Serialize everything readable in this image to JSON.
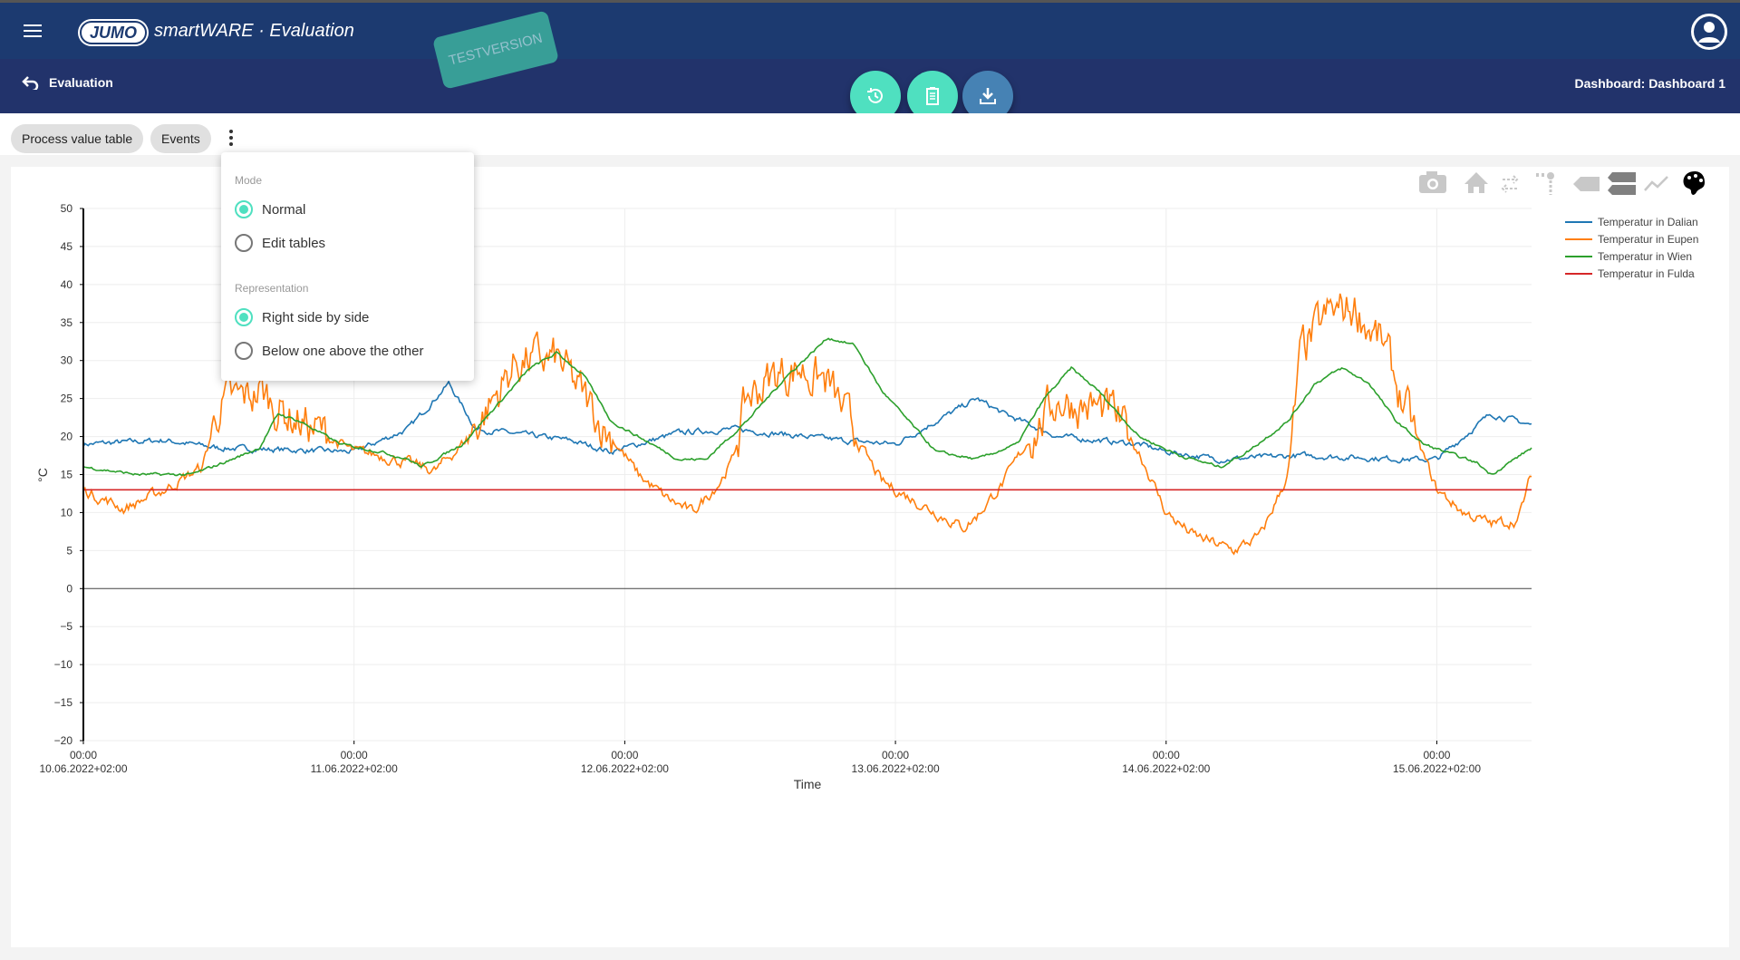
{
  "header": {
    "app_title": "smartWARE · Evaluation",
    "logo_text": "JUMO",
    "test_badge": "TESTVERSION",
    "back_label": "Evaluation",
    "dashboard_label": "Dashboard: Dashboard 1"
  },
  "toolbar": {
    "chips": [
      "Process value table",
      "Events"
    ]
  },
  "menu": {
    "mode_heading": "Mode",
    "mode_options": [
      {
        "label": "Normal",
        "selected": true
      },
      {
        "label": "Edit tables",
        "selected": false
      }
    ],
    "representation_heading": "Representation",
    "representation_options": [
      {
        "label": "Right side by side",
        "selected": true
      },
      {
        "label": "Below one above the other",
        "selected": false
      }
    ]
  },
  "colors": {
    "accent": "#4fe0c0",
    "header": "#1c3a70",
    "download": "#4682b4"
  },
  "chart_data": {
    "type": "line",
    "xlabel": "Time",
    "ylabel": "°C",
    "ylim": [
      -20,
      50
    ],
    "yticks": [
      50,
      45,
      40,
      35,
      30,
      25,
      20,
      15,
      10,
      5,
      0,
      -5,
      -10,
      -15,
      -20
    ],
    "ytick_labels": [
      "50",
      "45",
      "40",
      "35",
      "30",
      "25",
      "20",
      "15",
      "10",
      "5",
      "0",
      "−5",
      "−10",
      "−15",
      "−20"
    ],
    "x_unit": "days since 10.06.2022 00:00",
    "xlim": [
      0,
      5.35
    ],
    "xticks": [
      {
        "x": 0,
        "time": "00:00",
        "date": "10.06.2022+02:00"
      },
      {
        "x": 1,
        "time": "00:00",
        "date": "11.06.2022+02:00"
      },
      {
        "x": 2,
        "time": "00:00",
        "date": "12.06.2022+02:00"
      },
      {
        "x": 3,
        "time": "00:00",
        "date": "13.06.2022+02:00"
      },
      {
        "x": 4,
        "time": "00:00",
        "date": "14.06.2022+02:00"
      },
      {
        "x": 5,
        "time": "00:00",
        "date": "15.06.2022+02:00"
      }
    ],
    "legend_position": "top-right",
    "series": [
      {
        "name": "Temperatur in Dalian",
        "color": "#1f77b4",
        "noise": 0.6,
        "points": [
          [
            0,
            19
          ],
          [
            0.3,
            19.5
          ],
          [
            0.5,
            18.5
          ],
          [
            1.0,
            18
          ],
          [
            1.2,
            21
          ],
          [
            1.35,
            27
          ],
          [
            1.45,
            21
          ],
          [
            1.8,
            19.5
          ],
          [
            1.95,
            18
          ],
          [
            2.2,
            20.5
          ],
          [
            2.4,
            21
          ],
          [
            2.8,
            19.5
          ],
          [
            3.0,
            19
          ],
          [
            3.1,
            21
          ],
          [
            3.3,
            25
          ],
          [
            3.4,
            23
          ],
          [
            3.6,
            20
          ],
          [
            3.9,
            19
          ],
          [
            4.0,
            18
          ],
          [
            4.2,
            17
          ],
          [
            4.5,
            17.5
          ],
          [
            4.9,
            17
          ],
          [
            5.0,
            17
          ],
          [
            5.2,
            23
          ],
          [
            5.35,
            21.5
          ]
        ]
      },
      {
        "name": "Temperatur in Eupen",
        "color": "#ff7f0e",
        "noise": 1.2,
        "points": [
          [
            0,
            13
          ],
          [
            0.15,
            10.5
          ],
          [
            0.3,
            13
          ],
          [
            0.44,
            16
          ],
          [
            0.5,
            24
          ],
          [
            0.6,
            25
          ],
          [
            0.65,
            26
          ],
          [
            0.75,
            23
          ],
          [
            0.85,
            21
          ],
          [
            1.0,
            18
          ],
          [
            1.1,
            17.5
          ],
          [
            1.2,
            16.5
          ],
          [
            1.3,
            15.5
          ],
          [
            1.4,
            19
          ],
          [
            1.5,
            24
          ],
          [
            1.6,
            30
          ],
          [
            1.75,
            30
          ],
          [
            1.85,
            25
          ],
          [
            1.95,
            20
          ],
          [
            2.05,
            15
          ],
          [
            2.15,
            12
          ],
          [
            2.25,
            10
          ],
          [
            2.35,
            14
          ],
          [
            2.4,
            17
          ],
          [
            2.45,
            25
          ],
          [
            2.55,
            28
          ],
          [
            2.65,
            29
          ],
          [
            2.75,
            27
          ],
          [
            2.85,
            20
          ],
          [
            2.95,
            14
          ],
          [
            3.05,
            12
          ],
          [
            3.15,
            10
          ],
          [
            3.25,
            8
          ],
          [
            3.3,
            9.5
          ],
          [
            3.4,
            14
          ],
          [
            3.5,
            20
          ],
          [
            3.6,
            25
          ],
          [
            3.8,
            23
          ],
          [
            3.9,
            18
          ],
          [
            4.0,
            10
          ],
          [
            4.1,
            7
          ],
          [
            4.25,
            5
          ],
          [
            4.35,
            7
          ],
          [
            4.45,
            15
          ],
          [
            4.5,
            31
          ],
          [
            4.6,
            36
          ],
          [
            4.7,
            37
          ],
          [
            4.8,
            32
          ],
          [
            4.9,
            22
          ],
          [
            5.0,
            13
          ],
          [
            5.1,
            10
          ],
          [
            5.2,
            8.5
          ],
          [
            5.3,
            9
          ],
          [
            5.35,
            15
          ]
        ]
      },
      {
        "name": "Temperatur in Wien",
        "color": "#2ca02c",
        "noise": 0.3,
        "points": [
          [
            0,
            16
          ],
          [
            0.2,
            15
          ],
          [
            0.4,
            15
          ],
          [
            0.55,
            17
          ],
          [
            0.65,
            18.5
          ],
          [
            0.72,
            23
          ],
          [
            0.8,
            22
          ],
          [
            0.95,
            19
          ],
          [
            1.1,
            18
          ],
          [
            1.2,
            17
          ],
          [
            1.25,
            16
          ],
          [
            1.4,
            19
          ],
          [
            1.55,
            25
          ],
          [
            1.65,
            29
          ],
          [
            1.75,
            31
          ],
          [
            1.85,
            28
          ],
          [
            1.95,
            22
          ],
          [
            2.1,
            19
          ],
          [
            2.2,
            17
          ],
          [
            2.3,
            17
          ],
          [
            2.45,
            22
          ],
          [
            2.6,
            28
          ],
          [
            2.75,
            33
          ],
          [
            2.85,
            32
          ],
          [
            2.95,
            26
          ],
          [
            3.05,
            22
          ],
          [
            3.15,
            18
          ],
          [
            3.3,
            17
          ],
          [
            3.45,
            19
          ],
          [
            3.55,
            25
          ],
          [
            3.65,
            29
          ],
          [
            3.75,
            26
          ],
          [
            3.9,
            20
          ],
          [
            4.05,
            17.5
          ],
          [
            4.2,
            16
          ],
          [
            4.3,
            18
          ],
          [
            4.45,
            22
          ],
          [
            4.55,
            27
          ],
          [
            4.65,
            29
          ],
          [
            4.75,
            27
          ],
          [
            4.85,
            22
          ],
          [
            4.95,
            19
          ],
          [
            5.15,
            16.5
          ],
          [
            5.2,
            15
          ],
          [
            5.35,
            18.5
          ]
        ]
      },
      {
        "name": "Temperatur in Fulda",
        "color": "#d62728",
        "noise": 0,
        "points": [
          [
            0,
            13
          ],
          [
            5.35,
            13
          ]
        ]
      }
    ]
  }
}
